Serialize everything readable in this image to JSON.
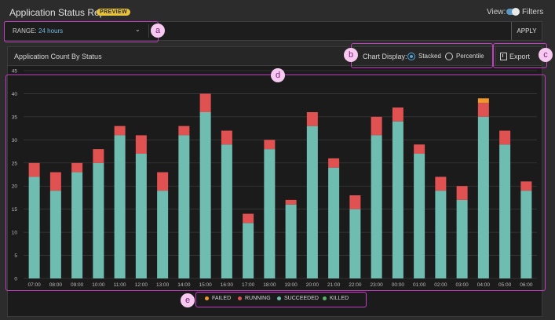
{
  "header": {
    "title": "Application Status Report",
    "badge": "PREVIEW",
    "view_label": "View:",
    "filters_label": "Filters"
  },
  "range": {
    "label": "RANGE:",
    "value": "24 hours",
    "apply_label": "APPLY"
  },
  "panel": {
    "title": "Application Count By Status",
    "display_label": "Chart Display:",
    "option_stacked": "Stacked",
    "option_percentile": "Percentile",
    "export_label": "Export"
  },
  "annotations": [
    "a",
    "b",
    "c",
    "d",
    "e"
  ],
  "colors": {
    "failed": "#f0962a",
    "running": "#e05252",
    "succeeded": "#6fbdb1",
    "killed": "#58b368"
  },
  "chart_data": {
    "type": "bar",
    "stacked": true,
    "title": "Application Count By Status",
    "xlabel": "",
    "ylabel": "",
    "ylim": [
      0,
      45
    ],
    "yticks": [
      0,
      5,
      10,
      15,
      20,
      25,
      30,
      35,
      40,
      45
    ],
    "grid": true,
    "legend_position": "bottom",
    "categories": [
      "07:00",
      "08:00",
      "09:00",
      "10:00",
      "11:00",
      "12:00",
      "13:00",
      "14:00",
      "15:00",
      "16:00",
      "17:00",
      "18:00",
      "19:00",
      "20:00",
      "21:00",
      "22:00",
      "23:00",
      "00:00",
      "01:00",
      "02:00",
      "03:00",
      "04:00",
      "05:00",
      "06:00"
    ],
    "series": [
      {
        "name": "SUCCEEDED",
        "color": "#6fbdb1",
        "values": [
          22,
          19,
          23,
          25,
          31,
          27,
          19,
          31,
          36,
          29,
          12,
          28,
          16,
          33,
          24,
          15,
          31,
          34,
          27,
          19,
          17,
          35,
          29,
          19
        ]
      },
      {
        "name": "RUNNING",
        "color": "#e05252",
        "values": [
          3,
          4,
          2,
          3,
          2,
          4,
          4,
          2,
          4,
          3,
          2,
          2,
          1,
          3,
          2,
          3,
          4,
          3,
          2,
          3,
          3,
          3,
          3,
          2
        ]
      },
      {
        "name": "FAILED",
        "color": "#f0962a",
        "values": [
          0,
          0,
          0,
          0,
          0,
          0,
          0,
          0,
          0,
          0,
          0,
          0,
          0,
          0,
          0,
          0,
          0,
          0,
          0,
          0,
          0,
          1,
          0,
          0
        ]
      },
      {
        "name": "KILLED",
        "color": "#58b368",
        "values": [
          0,
          0,
          0,
          0,
          0,
          0,
          0,
          0,
          0,
          0,
          0,
          0,
          0,
          0,
          0,
          0,
          0,
          0,
          0,
          0,
          0,
          0,
          0,
          0
        ]
      }
    ],
    "legend": [
      "FAILED",
      "RUNNING",
      "SUCCEEDED",
      "KILLED"
    ]
  }
}
